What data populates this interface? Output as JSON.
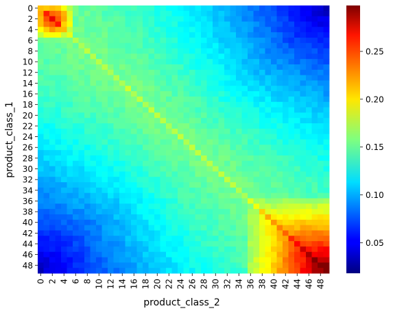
{
  "chart_data": {
    "type": "heatmap",
    "title": "",
    "xlabel": "product_class_2",
    "ylabel": "product_class_1",
    "size": 50,
    "x_tick_labels": [
      "0",
      "2",
      "4",
      "6",
      "8",
      "10",
      "12",
      "14",
      "16",
      "18",
      "20",
      "22",
      "24",
      "26",
      "28",
      "30",
      "32",
      "34",
      "36",
      "38",
      "40",
      "42",
      "44",
      "46",
      "48"
    ],
    "y_tick_labels": [
      "0",
      "2",
      "4",
      "6",
      "8",
      "10",
      "12",
      "14",
      "16",
      "18",
      "20",
      "22",
      "24",
      "26",
      "28",
      "30",
      "32",
      "34",
      "36",
      "38",
      "40",
      "42",
      "44",
      "46",
      "48"
    ],
    "colorbar": {
      "min": 0.018,
      "max": 0.298,
      "ticks": [
        0.05,
        0.1,
        0.15,
        0.2,
        0.25
      ],
      "tick_labels": [
        "0.05",
        "0.10",
        "0.15",
        "0.20",
        "0.25"
      ],
      "colormap": "jet"
    },
    "description_values": {
      "top_left_block_peak": 0.26,
      "bottom_right_block_peak": 0.29,
      "background_mid": 0.155,
      "far_corner_min": 0.018
    }
  }
}
